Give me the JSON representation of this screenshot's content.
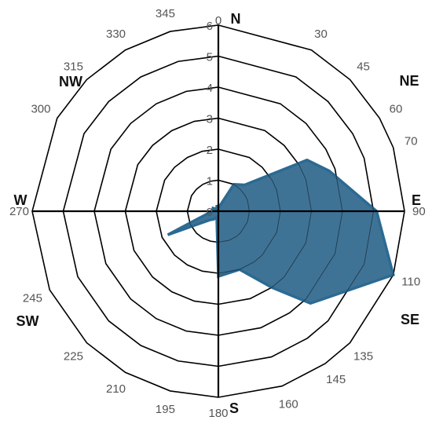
{
  "chart_data": {
    "type": "area",
    "chart_kind": "radar",
    "angles": [
      0,
      30,
      45,
      60,
      70,
      90,
      110,
      135,
      145,
      160,
      180,
      195,
      210,
      225,
      245,
      270,
      300,
      315,
      330,
      345
    ],
    "radial_ticks": [
      0,
      1,
      2,
      3,
      4,
      5,
      6
    ],
    "rmax": 6,
    "compass_labels": [
      {
        "text": "N",
        "angle": 0
      },
      {
        "text": "NE",
        "angle": 45
      },
      {
        "text": "E",
        "angle": 90
      },
      {
        "text": "SE",
        "angle": 135
      },
      {
        "text": "S",
        "angle": 180
      },
      {
        "text": "SW",
        "angle": 225
      },
      {
        "text": "W",
        "angle": 270
      },
      {
        "text": "NW",
        "angle": 315
      }
    ],
    "series": [
      {
        "values": [
          0.1,
          1.0,
          1.2,
          3.3,
          3.8,
          5.1,
          6.0,
          4.2,
          3.0,
          2.0,
          2.1,
          0.2,
          0.3,
          0.4,
          1.8,
          0.2,
          0.2,
          0.1,
          0.1,
          0.2
        ]
      }
    ],
    "colors": {
      "fill": "#3f7396",
      "stroke": "#2c6a92",
      "grid": "#000000"
    },
    "grid": true
  }
}
